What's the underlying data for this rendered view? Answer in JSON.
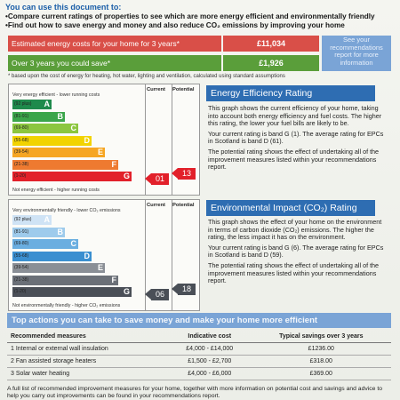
{
  "header": {
    "title": "You can use this document to:",
    "bullets": [
      "Compare current ratings of properties to see which are more energy efficient and environmentally friendly",
      "Find out how to save energy and money and also reduce CO₂ emissions by improving your home"
    ]
  },
  "costs": {
    "estimated_label": "Estimated energy costs for your home for 3 years*",
    "estimated_value": "£11,034",
    "save_label": "Over 3 years you could save*",
    "save_value": "£1,926",
    "see_note": "See your recommendations report for more information",
    "based_note": "* based upon the cost of energy for heating, hot water, lighting and ventilation, calculated using standard assumptions"
  },
  "columns": {
    "current": "Current",
    "potential": "Potential"
  },
  "eer": {
    "top_note": "Very energy efficient - lower running costs",
    "bottom_note": "Not energy efficient - higher running costs",
    "bands": [
      {
        "range": "(92 plus)",
        "letter": "A",
        "color": "#1f8a4c"
      },
      {
        "range": "(81-91)",
        "letter": "B",
        "color": "#3aa54a"
      },
      {
        "range": "(69-80)",
        "letter": "C",
        "color": "#8cc63f"
      },
      {
        "range": "(55-68)",
        "letter": "D",
        "color": "#f2d300"
      },
      {
        "range": "(39-54)",
        "letter": "E",
        "color": "#f6a623"
      },
      {
        "range": "(21-38)",
        "letter": "F",
        "color": "#ee7a30"
      },
      {
        "range": "(1-20)",
        "letter": "G",
        "color": "#e2202a"
      }
    ],
    "current": "01",
    "potential": "13",
    "title": "Energy Efficiency Rating",
    "paragraphs": [
      "This graph shows the current efficiency of your home, taking into account both energy efficiency and fuel costs. The higher this rating, the lower your fuel bills are likely to be.",
      "Your current rating is band G (1). The average rating for EPCs in Scotland is band D (61).",
      "The potential rating shows the effect of undertaking all of the improvement measures listed within your recommendations report."
    ]
  },
  "eir": {
    "top_note": "Very environmentally friendly - lower CO₂ emissions",
    "bottom_note": "Not environmentally friendly - higher CO₂ emissions",
    "bands": [
      {
        "range": "(92 plus)",
        "letter": "A",
        "color": "#cfe3f5"
      },
      {
        "range": "(81-91)",
        "letter": "B",
        "color": "#9ecbec"
      },
      {
        "range": "(69-80)",
        "letter": "C",
        "color": "#6aaee0"
      },
      {
        "range": "(55-68)",
        "letter": "D",
        "color": "#3a8fd0"
      },
      {
        "range": "(39-54)",
        "letter": "E",
        "color": "#8a8f96"
      },
      {
        "range": "(21-38)",
        "letter": "F",
        "color": "#6b7078"
      },
      {
        "range": "(1-20)",
        "letter": "G",
        "color": "#4a4f57"
      }
    ],
    "current": "06",
    "potential": "18",
    "title": "Environmental Impact (CO₂) Rating",
    "paragraphs": [
      "This graph shows the effect of your home on the environment in terms of carbon dioxide (CO₂) emissions. The higher the rating, the less impact it has on the environment.",
      "Your current rating is band G (6). The average rating for EPCs in Scotland is band D (59).",
      "The potential rating shows the effect of undertaking all of the improvement measures listed within your recommendations report."
    ]
  },
  "actions": {
    "title": "Top actions you can take to save money and make your home more efficient",
    "headers": [
      "Recommended measures",
      "Indicative cost",
      "Typical savings over 3 years"
    ],
    "rows": [
      [
        "1 Internal or external wall insulation",
        "£4,000 - £14,000",
        "£1236.00"
      ],
      [
        "2 Fan assisted storage heaters",
        "£1,500 - £2,700",
        "£318.00"
      ],
      [
        "3 Solar water heating",
        "£4,000 - £6,000",
        "£369.00"
      ]
    ],
    "footer": "A full list of recommended improvement measures for your home, together with more information on potential cost and savings and advice to help you carry out improvements can be found in your recommendations report."
  }
}
